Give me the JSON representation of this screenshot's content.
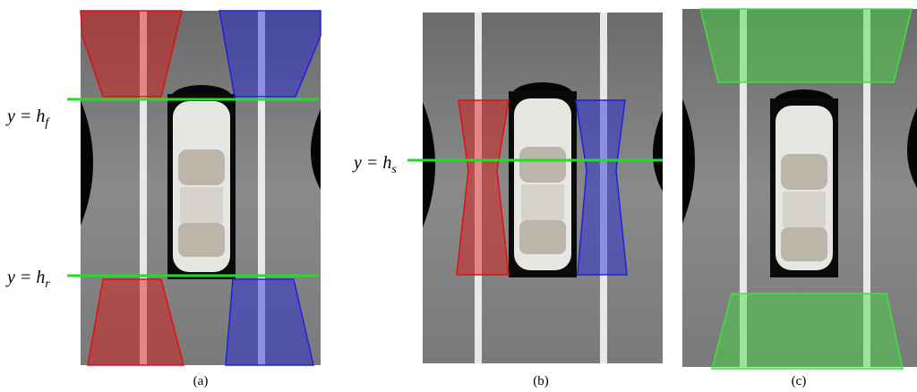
{
  "panels": [
    {
      "caption": "(a)",
      "lines": [
        {
          "lhs": "y = h",
          "sub": "f"
        },
        {
          "lhs": "y = h",
          "sub": "r"
        }
      ]
    },
    {
      "caption": "(b)",
      "lines": [
        {
          "lhs": "y = h",
          "sub": "s"
        }
      ]
    },
    {
      "caption": "(c)",
      "lines": []
    }
  ]
}
